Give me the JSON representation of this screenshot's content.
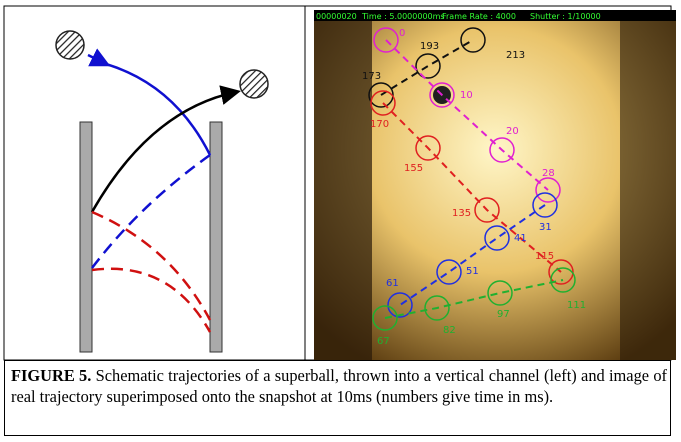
{
  "photo": {
    "overlay": [
      "00000020",
      "Time : 5.0000000ms",
      "Frame Rate : 4000",
      "Shutter : 1/10000"
    ],
    "labels": {
      "black": [
        "173",
        "193",
        "213"
      ],
      "magenta": [
        "0",
        "10",
        "20",
        "28"
      ],
      "red": [
        "170",
        "155",
        "135",
        "115"
      ],
      "blue": [
        "31",
        "41",
        "51",
        "61"
      ],
      "green": [
        "67",
        "82",
        "97",
        "111"
      ]
    }
  },
  "caption": {
    "label": "FIGURE 5.",
    "text": "Schematic trajectories of a superball, thrown into a vertical channel (left) and image of real trajectory superimposed onto the snapshot at 10ms (numbers give time in ms)."
  }
}
